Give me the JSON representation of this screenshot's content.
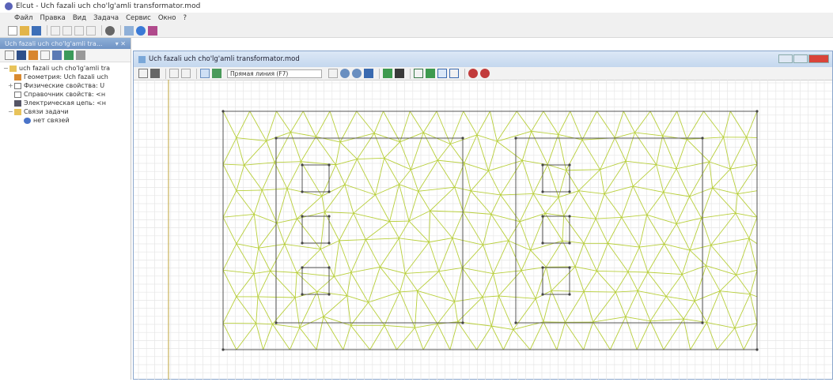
{
  "window": {
    "title": "Elcut - Uch fazali uch cho'lg'amli transformator.mod"
  },
  "menu": [
    "Файл",
    "Правка",
    "Вид",
    "Задача",
    "Сервис",
    "Окно",
    "?"
  ],
  "left_panel": {
    "header": "Uch fazali uch cho'lg'amli tra...",
    "tree": [
      {
        "label": "uch fazali uch cho'lg'amli tra",
        "icon": "folder-icon",
        "level": 0
      },
      {
        "label": "Геометрия: Uch fazali uch",
        "icon": "geometry-icon",
        "level": 1
      },
      {
        "label": "Физические свойства: U",
        "icon": "properties-icon",
        "level": 1
      },
      {
        "label": "Справочник свойств: <н",
        "icon": "library-icon",
        "level": 1
      },
      {
        "label": "Электрическая цепь: <н",
        "icon": "circuit-icon",
        "level": 1
      },
      {
        "label": "Связи задачи",
        "icon": "folder-icon",
        "level": 1
      },
      {
        "label": "нет связей",
        "icon": "link-icon",
        "level": 2
      }
    ]
  },
  "document": {
    "title": "Uch fazali uch cho'lg'amli transformator.mod",
    "dropdown": "Прямая линия (F7)"
  },
  "colors": {
    "mesh": "#b8cf3a",
    "grid": "#e6e6e6",
    "outline": "#555555"
  }
}
